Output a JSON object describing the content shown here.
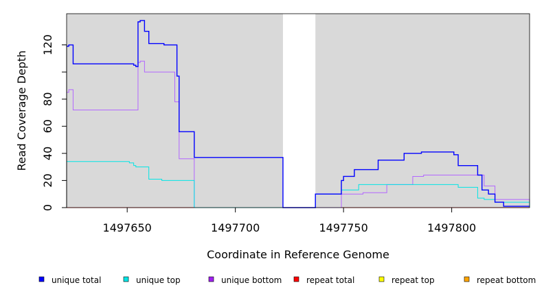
{
  "chart_data": {
    "type": "line",
    "xlabel": "Coordinate in Reference Genome",
    "ylabel": "Read Coverage Depth",
    "xlim": [
      1497622,
      1497836
    ],
    "ylim": [
      0,
      143
    ],
    "x_ticks": [
      1497650,
      1497700,
      1497750,
      1497800
    ],
    "x_tick_labels": [
      "1497650",
      "1497700",
      "1497750",
      "1497800"
    ],
    "y_ticks": [
      0,
      20,
      40,
      60,
      80,
      100,
      120
    ],
    "y_tick_labels": [
      "0",
      "20",
      "40",
      "60",
      "80",
      "",
      "120"
    ],
    "shaded_regions": [
      [
        1497622,
        1497722
      ],
      [
        1497737,
        1497836
      ]
    ],
    "shade_color": "#d9d9d9",
    "legend_position": "bottom",
    "series": [
      {
        "name": "unique total",
        "color": "#0000ff",
        "step": true,
        "x": [
          1497622,
          1497623,
          1497625,
          1497651,
          1497653,
          1497654,
          1497655,
          1497656,
          1497658,
          1497660,
          1497666,
          1497667,
          1497673,
          1497674,
          1497681,
          1497722,
          1497737,
          1497749,
          1497750,
          1497755,
          1497766,
          1497778,
          1497786,
          1497791,
          1497801,
          1497803,
          1497812,
          1497814,
          1497817,
          1497820,
          1497824,
          1497836
        ],
        "y": [
          119,
          120,
          106,
          106,
          105,
          104,
          137,
          138,
          130,
          121,
          121,
          120,
          97,
          56,
          37,
          0,
          10,
          20,
          23,
          28,
          35,
          40,
          41,
          41,
          39,
          31,
          24,
          13,
          10,
          4,
          1,
          1
        ]
      },
      {
        "name": "unique top",
        "color": "#00e5e5",
        "step": true,
        "x": [
          1497622,
          1497651,
          1497653,
          1497654,
          1497660,
          1497666,
          1497681,
          1497722,
          1497737,
          1497749,
          1497757,
          1497770,
          1497800,
          1497803,
          1497812,
          1497815,
          1497820,
          1497836
        ],
        "y": [
          34,
          33,
          31,
          30,
          21,
          20,
          0,
          0,
          10,
          13,
          17,
          17,
          17,
          15,
          7,
          6,
          4,
          0
        ]
      },
      {
        "name": "unique bottom",
        "color": "#b266ff",
        "step": true,
        "x": [
          1497622,
          1497623,
          1497625,
          1497654,
          1497655,
          1497656,
          1497658,
          1497672,
          1497674,
          1497681,
          1497722,
          1497737,
          1497749,
          1497759,
          1497770,
          1497782,
          1497787,
          1497813,
          1497815,
          1497820,
          1497836
        ],
        "y": [
          85,
          87,
          72,
          72,
          107,
          108,
          100,
          78,
          36,
          0,
          0,
          0,
          10,
          11,
          17,
          23,
          24,
          24,
          16,
          6,
          0
        ]
      },
      {
        "name": "repeat total",
        "color": "#ff0000",
        "step": true,
        "x": [
          1497622,
          1497836
        ],
        "y": [
          0,
          0
        ]
      },
      {
        "name": "repeat top",
        "color": "#ffff00",
        "step": true,
        "x": [
          1497622,
          1497836
        ],
        "y": [
          0,
          0
        ]
      },
      {
        "name": "repeat bottom",
        "color": "#ffa500",
        "step": true,
        "x": [
          1497622,
          1497836
        ],
        "y": [
          0,
          0
        ]
      }
    ],
    "legend": [
      {
        "label": "unique total",
        "color": "#0000ff"
      },
      {
        "label": "unique top",
        "color": "#00e5e5"
      },
      {
        "label": "unique bottom",
        "color": "#a020f0"
      },
      {
        "label": "repeat total",
        "color": "#ff0000"
      },
      {
        "label": "repeat top",
        "color": "#ffff00"
      },
      {
        "label": "repeat bottom",
        "color": "#ffa500"
      }
    ]
  }
}
